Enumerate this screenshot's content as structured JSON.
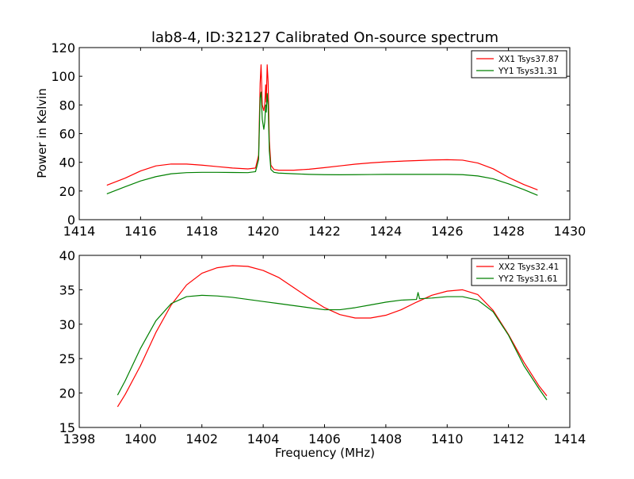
{
  "chart_data": [
    {
      "type": "line",
      "title": "lab8-4, ID:32127 Calibrated On-source spectrum",
      "xlabel": "",
      "ylabel": "Power in Kelvin",
      "xlim": [
        1414,
        1430
      ],
      "ylim": [
        0,
        120
      ],
      "xticks": [
        "1414",
        "1416",
        "1418",
        "1420",
        "1422",
        "1424",
        "1426",
        "1428",
        "1430"
      ],
      "yticks": [
        "0",
        "20",
        "40",
        "60",
        "80",
        "100",
        "120"
      ],
      "grid": false,
      "legend_position": "top-right",
      "series": [
        {
          "name": "XX1 Tsys37.87",
          "color": "#ff0000",
          "x": [
            1414.9,
            1415.5,
            1416.0,
            1416.5,
            1417.0,
            1417.5,
            1418.0,
            1418.5,
            1419.0,
            1419.5,
            1419.75,
            1419.85,
            1419.9,
            1419.93,
            1419.97,
            1420.02,
            1420.05,
            1420.08,
            1420.1,
            1420.13,
            1420.16,
            1420.2,
            1420.25,
            1420.35,
            1420.5,
            1421.0,
            1421.5,
            1422.0,
            1422.5,
            1423.0,
            1423.5,
            1424.0,
            1424.5,
            1425.0,
            1425.5,
            1426.0,
            1426.5,
            1427.0,
            1427.5,
            1428.0,
            1428.5,
            1428.95
          ],
          "values": [
            24,
            29,
            34,
            37.5,
            38.8,
            38.8,
            38,
            37,
            36,
            35.4,
            36,
            45,
            95,
            108,
            80,
            76,
            80,
            94,
            82,
            108,
            96,
            55,
            38,
            35,
            34.5,
            34.5,
            35.2,
            36.3,
            37.5,
            38.7,
            39.6,
            40.3,
            40.8,
            41.2,
            41.6,
            41.8,
            41.5,
            39.5,
            35.5,
            29.5,
            24.5,
            20.8
          ]
        },
        {
          "name": "YY1 Tsys31.31",
          "color": "#008000",
          "x": [
            1414.9,
            1415.5,
            1416.0,
            1416.5,
            1417.0,
            1417.5,
            1418.0,
            1418.5,
            1419.0,
            1419.5,
            1419.75,
            1419.85,
            1419.9,
            1419.93,
            1419.97,
            1420.02,
            1420.05,
            1420.08,
            1420.1,
            1420.13,
            1420.16,
            1420.2,
            1420.25,
            1420.35,
            1420.5,
            1421.0,
            1421.5,
            1422.0,
            1422.5,
            1423.0,
            1423.5,
            1424.0,
            1424.5,
            1425.0,
            1425.5,
            1426.0,
            1426.5,
            1427.0,
            1427.5,
            1428.0,
            1428.5,
            1428.95
          ],
          "values": [
            18,
            23,
            27,
            30,
            32,
            32.8,
            33,
            33,
            32.9,
            32.8,
            33.5,
            42,
            85,
            89,
            70,
            63,
            68,
            80,
            75,
            88,
            80,
            48,
            35,
            33,
            32.5,
            32,
            31.6,
            31.4,
            31.3,
            31.4,
            31.5,
            31.6,
            31.6,
            31.6,
            31.6,
            31.6,
            31.4,
            30.5,
            28.5,
            25,
            21,
            17
          ]
        }
      ]
    },
    {
      "type": "line",
      "title": "",
      "xlabel": "Frequency (MHz)",
      "ylabel": "",
      "xlim": [
        1398,
        1414
      ],
      "ylim": [
        15,
        40
      ],
      "xticks": [
        "1398",
        "1400",
        "1402",
        "1404",
        "1406",
        "1408",
        "1410",
        "1412",
        "1414"
      ],
      "yticks": [
        "15",
        "20",
        "25",
        "30",
        "35",
        "40"
      ],
      "grid": false,
      "legend_position": "top-right",
      "series": [
        {
          "name": "XX2 Tsys32.41",
          "color": "#ff0000",
          "x": [
            1399.25,
            1399.5,
            1400.0,
            1400.5,
            1401.0,
            1401.5,
            1402.0,
            1402.5,
            1403.0,
            1403.5,
            1404.0,
            1404.5,
            1405.0,
            1405.5,
            1406.0,
            1406.5,
            1407.0,
            1407.5,
            1408.0,
            1408.5,
            1409.0,
            1409.5,
            1410.0,
            1410.5,
            1411.0,
            1411.5,
            1412.0,
            1412.5,
            1413.0,
            1413.25
          ],
          "values": [
            18,
            19.8,
            24,
            28.8,
            32.8,
            35.7,
            37.4,
            38.2,
            38.5,
            38.4,
            37.8,
            36.8,
            35.3,
            33.8,
            32.4,
            31.4,
            30.9,
            30.9,
            31.3,
            32.1,
            33.2,
            34.2,
            34.8,
            35,
            34.3,
            32,
            28.5,
            24.5,
            21,
            19.6
          ]
        },
        {
          "name": "YY2 Tsys31.61",
          "color": "#008000",
          "x": [
            1399.25,
            1399.5,
            1400.0,
            1400.5,
            1401.0,
            1401.5,
            1402.0,
            1402.5,
            1403.0,
            1403.5,
            1404.0,
            1404.5,
            1405.0,
            1405.5,
            1406.0,
            1406.5,
            1407.0,
            1407.5,
            1408.0,
            1408.5,
            1409.0,
            1409.05,
            1409.1,
            1409.5,
            1410.0,
            1410.5,
            1411.0,
            1411.5,
            1412.0,
            1412.5,
            1413.0,
            1413.25
          ],
          "values": [
            19.7,
            21.8,
            26.5,
            30.5,
            33,
            34,
            34.2,
            34.1,
            33.9,
            33.6,
            33.3,
            33,
            32.7,
            32.4,
            32.1,
            32.1,
            32.4,
            32.8,
            33.2,
            33.5,
            33.6,
            34.6,
            33.7,
            33.8,
            34,
            34,
            33.5,
            31.8,
            28.4,
            24,
            20.6,
            19
          ]
        }
      ]
    }
  ]
}
